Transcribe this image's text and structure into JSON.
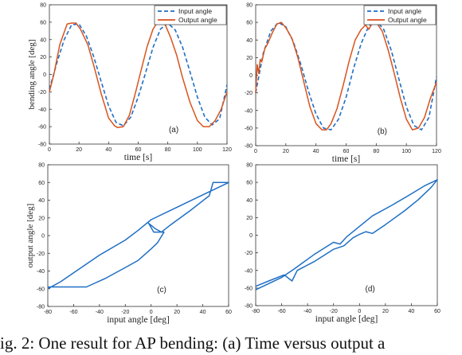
{
  "figure": {
    "caption": "ig. 2: One result for AP bending: (a) Time versus output a"
  },
  "colors": {
    "input": "#1f6fc5",
    "output": "#d9531e",
    "hyst": "#1f6fc5",
    "axis": "#333333"
  },
  "chart_data": [
    {
      "id": "a",
      "type": "line",
      "panel_label": "(a)",
      "xlabel": "time [s]",
      "ylabel": "bending angle [deg]",
      "xlim": [
        0,
        120
      ],
      "ylim": [
        -80,
        80
      ],
      "xticks": [
        0,
        20,
        40,
        60,
        80,
        100,
        120
      ],
      "yticks": [
        -80,
        -60,
        -40,
        -20,
        0,
        20,
        40,
        60,
        80
      ],
      "legend": {
        "position": "top-right"
      },
      "series": [
        {
          "name": "Input angle",
          "style": "dashed",
          "color": "#1f6fc5",
          "x": [
            0,
            5,
            10,
            15,
            20,
            25,
            30,
            35,
            40,
            45,
            50,
            55,
            60,
            65,
            70,
            75,
            80,
            85,
            90,
            95,
            100,
            105,
            110,
            115,
            120
          ],
          "y": [
            -17,
            13,
            40,
            57,
            58,
            44,
            20,
            -8,
            -36,
            -55,
            -59,
            -49,
            -26,
            2,
            31,
            52,
            59,
            51,
            31,
            3,
            -26,
            -49,
            -58,
            -51,
            -12
          ]
        },
        {
          "name": "Output angle",
          "style": "solid",
          "color": "#d9531e",
          "x": [
            0,
            3,
            7,
            12,
            15,
            18,
            21,
            26,
            30,
            35,
            40,
            44,
            46,
            50,
            54,
            58,
            62,
            66,
            70,
            73,
            76,
            78,
            82,
            86,
            90,
            95,
            100,
            104,
            108,
            112,
            116,
            120
          ],
          "y": [
            -20,
            0,
            34,
            58,
            59,
            59,
            52,
            34,
            10,
            -22,
            -50,
            -59,
            -61,
            -60,
            -47,
            -22,
            5,
            32,
            52,
            60,
            60,
            58,
            42,
            22,
            -4,
            -32,
            -53,
            -60,
            -60,
            -53,
            -40,
            -20
          ]
        }
      ]
    },
    {
      "id": "b",
      "type": "line",
      "panel_label": "(b)",
      "xlabel": "time [s]",
      "ylabel": "",
      "xlim": [
        0,
        120
      ],
      "ylim": [
        -80,
        80
      ],
      "xticks": [
        0,
        20,
        40,
        60,
        80,
        100,
        120
      ],
      "yticks": [
        -80,
        -60,
        -40,
        -20,
        0,
        20,
        40,
        60,
        80
      ],
      "legend": {
        "position": "top-right"
      },
      "series": [
        {
          "name": "Input angle",
          "style": "dashed",
          "color": "#1f6fc5",
          "x": [
            0,
            5,
            10,
            15,
            20,
            25,
            30,
            35,
            40,
            45,
            50,
            55,
            60,
            65,
            70,
            75,
            80,
            85,
            90,
            95,
            100,
            105,
            110,
            115,
            120
          ],
          "y": [
            -20,
            25,
            50,
            60,
            55,
            38,
            12,
            -18,
            -44,
            -60,
            -62,
            -50,
            -25,
            8,
            36,
            56,
            62,
            52,
            28,
            -4,
            -36,
            -57,
            -62,
            -48,
            -2
          ]
        },
        {
          "name": "Output angle",
          "style": "solid",
          "color": "#d9531e",
          "x": [
            0,
            1,
            2,
            3,
            4,
            6,
            8,
            11,
            14,
            17,
            20,
            24,
            28,
            32,
            36,
            40,
            44,
            47,
            50,
            54,
            58,
            62,
            66,
            70,
            73,
            75,
            77,
            80,
            84,
            88,
            92,
            96,
            100,
            104,
            108,
            112,
            116,
            120
          ],
          "y": [
            -20,
            12,
            2,
            18,
            15,
            30,
            36,
            48,
            58,
            60,
            54,
            42,
            20,
            -8,
            -36,
            -55,
            -62,
            -62,
            -55,
            -38,
            -12,
            16,
            40,
            52,
            57,
            52,
            58,
            60,
            50,
            28,
            2,
            -26,
            -50,
            -62,
            -60,
            -48,
            -26,
            -8
          ]
        }
      ]
    },
    {
      "id": "c",
      "type": "line",
      "panel_label": "(c)",
      "xlabel": "input angle [deg]",
      "ylabel": "output angle [deg]",
      "xlim": [
        -80,
        60
      ],
      "ylim": [
        -80,
        80
      ],
      "xticks": [
        -80,
        -60,
        -40,
        -20,
        0,
        20,
        40,
        60
      ],
      "yticks": [
        -80,
        -60,
        -40,
        -20,
        0,
        20,
        40,
        60,
        80
      ],
      "series": [
        {
          "name": "",
          "style": "solid",
          "color": "#1f6fc5",
          "x": [
            -80,
            -65,
            -50,
            -35,
            -20,
            -10,
            0,
            5,
            10,
            2,
            -2,
            3,
            8,
            15,
            30,
            45,
            48,
            60,
            40,
            20,
            0,
            -10,
            -20,
            -40,
            -60,
            -70,
            -80
          ],
          "y": [
            -58,
            -58,
            -58,
            -48,
            -36,
            -28,
            -15,
            -8,
            4,
            4,
            14,
            8,
            4,
            12,
            28,
            45,
            60,
            60,
            46,
            32,
            18,
            6,
            -5,
            -22,
            -42,
            -52,
            -60
          ]
        }
      ]
    },
    {
      "id": "d",
      "type": "line",
      "panel_label": "(d)",
      "xlabel": "input angle [deg]",
      "ylabel": "",
      "xlim": [
        -80,
        60
      ],
      "ylim": [
        -80,
        80
      ],
      "xticks": [
        -80,
        -60,
        -40,
        -20,
        0,
        20,
        40,
        60
      ],
      "yticks": [
        -80,
        -60,
        -40,
        -20,
        0,
        20,
        40,
        60,
        80
      ],
      "series": [
        {
          "name": "",
          "style": "solid",
          "color": "#1f6fc5",
          "x": [
            -80,
            -70,
            -58,
            -52,
            -48,
            -35,
            -20,
            -12,
            -5,
            0,
            5,
            10,
            20,
            35,
            45,
            55,
            60,
            50,
            40,
            25,
            10,
            0,
            -10,
            -15,
            -20,
            -35,
            -50,
            -60,
            -70,
            -80
          ],
          "y": [
            -58,
            -52,
            -45,
            -52,
            -40,
            -30,
            -16,
            -12,
            -3,
            1,
            4,
            2,
            12,
            28,
            40,
            54,
            63,
            56,
            47,
            34,
            22,
            10,
            -2,
            -10,
            -8,
            -22,
            -38,
            -48,
            -55,
            -62
          ]
        }
      ]
    }
  ]
}
